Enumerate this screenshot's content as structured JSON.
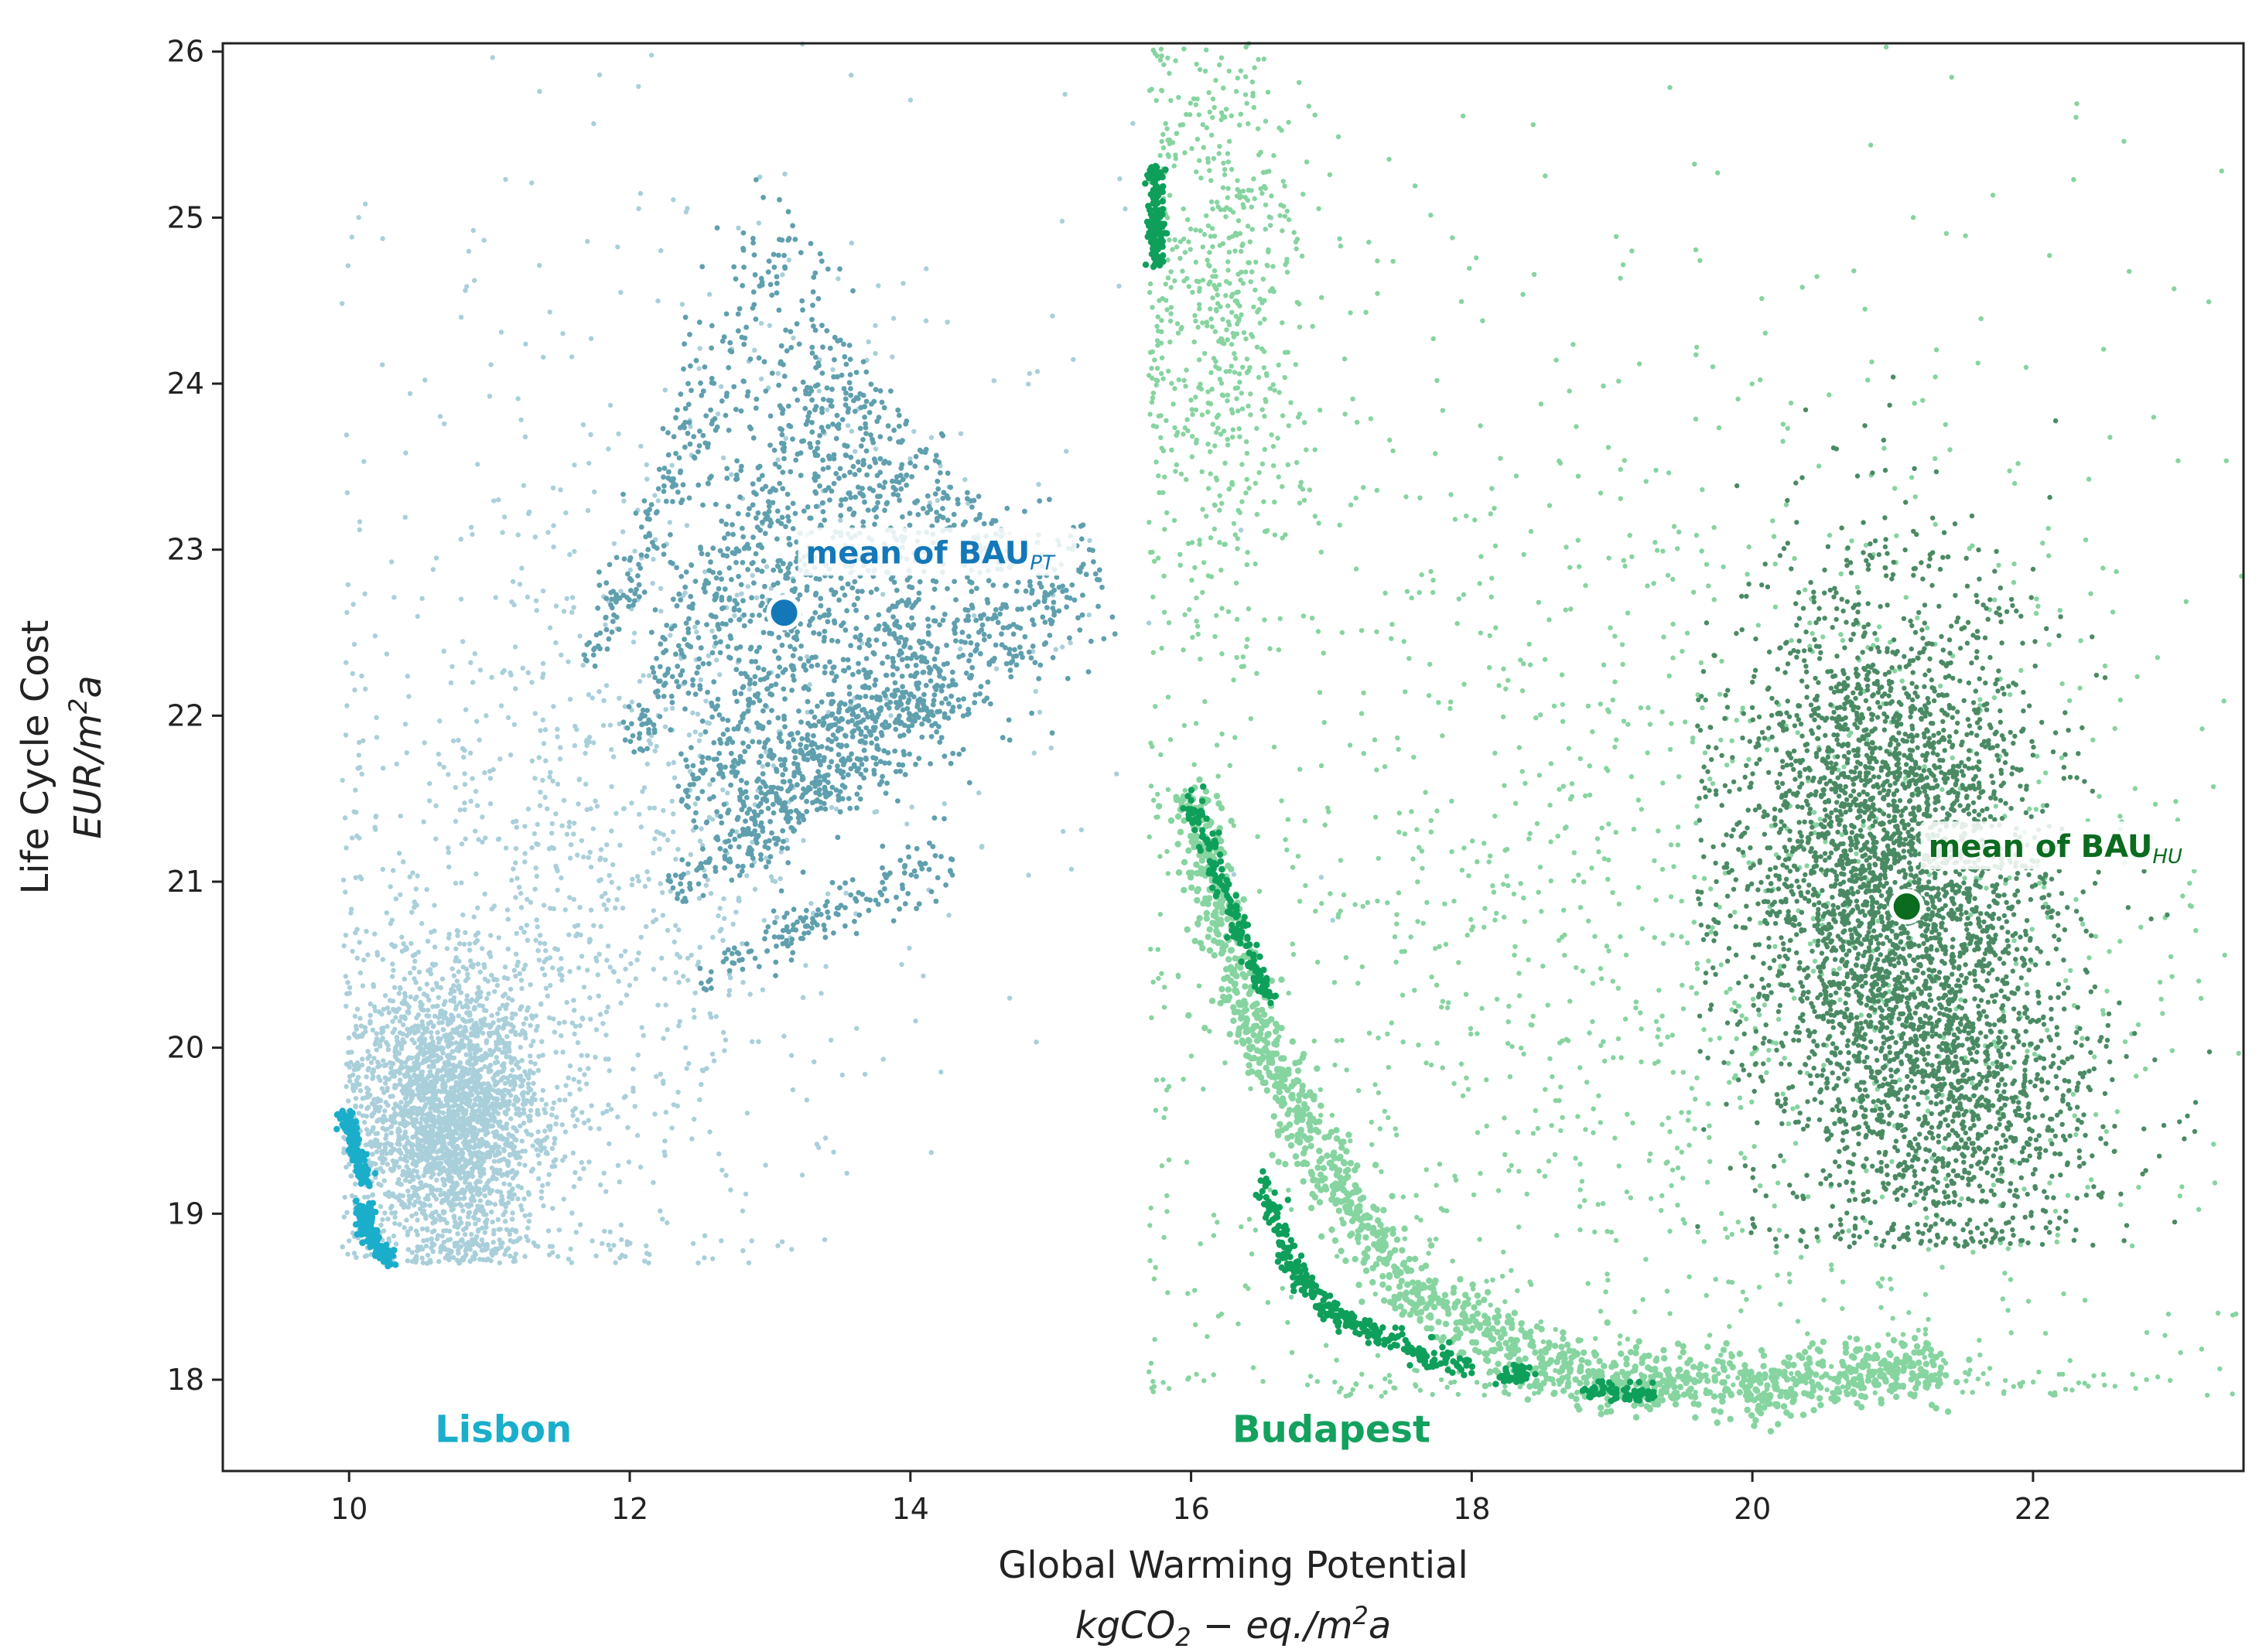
{
  "chart_data": {
    "type": "scatter",
    "title": "",
    "xlabel": "Global Warming Potential",
    "xlabel_unit": {
      "base": "kgCO",
      "sub": "2",
      "mid": " − eq./m",
      "sup": "2",
      "end": "a"
    },
    "ylabel": "Life Cycle Cost",
    "ylabel_unit": {
      "base": "EUR/m",
      "sup": "2",
      "end": "a"
    },
    "xlim": [
      9.1,
      23.5
    ],
    "ylim": [
      17.45,
      26.05
    ],
    "x_ticks": [
      10,
      12,
      14,
      16,
      18,
      20,
      22
    ],
    "y_ticks": [
      18,
      19,
      20,
      21,
      22,
      23,
      24,
      25,
      26
    ],
    "grid": false,
    "colors": {
      "lisbon_light": "#a9cfda",
      "lisbon_mid": "#5f9fae",
      "lisbon_bright": "#1aaecb",
      "lisbon_label": "#1aaecb",
      "lisbon_mean": "#1478b8",
      "budapest_light": "#86d4a0",
      "budapest_mid": "#4a8a63",
      "budapest_bright": "#0e9f5a",
      "budapest_label": "#13a15e",
      "budapest_mean": "#0b6b1f"
    },
    "city_labels": [
      {
        "text": "Lisbon",
        "x": 11.1,
        "y": 17.7,
        "color": "#1aaecb"
      },
      {
        "text": "Budapest",
        "x": 17.0,
        "y": 17.7,
        "color": "#13a15e"
      }
    ],
    "series": [
      {
        "city": "Lisbon",
        "color": "#a9cfda",
        "clusters": [
          {
            "x_mean": 10.7,
            "x_sd": 0.35,
            "y_mean": 19.6,
            "y_sd": 0.45,
            "count": 2600,
            "xmin": 9.95,
            "ymin": 18.7
          },
          {
            "x_mean": 11.6,
            "x_sd": 0.9,
            "y_mean": 20.8,
            "y_sd": 1.2,
            "count": 900,
            "xmin": 9.95,
            "ymin": 18.7
          },
          {
            "x_mean": 12.6,
            "x_sd": 1.6,
            "y_mean": 23.0,
            "y_sd": 1.6,
            "count": 320,
            "xmin": 9.95,
            "ymin": 18.7
          }
        ]
      },
      {
        "city": "Lisbon",
        "color": "#5f9fae",
        "streaks": [
          {
            "x0": 11.7,
            "y0": 22.3,
            "x1": 13.2,
            "y1": 25.0,
            "count": 260,
            "spread": 0.25
          },
          {
            "x0": 12.0,
            "y0": 21.8,
            "x1": 13.6,
            "y1": 24.2,
            "count": 420,
            "spread": 0.35
          },
          {
            "x0": 12.4,
            "y0": 21.4,
            "x1": 14.0,
            "y1": 23.8,
            "count": 520,
            "spread": 0.4
          },
          {
            "x0": 12.8,
            "y0": 21.2,
            "x1": 14.6,
            "y1": 23.2,
            "count": 560,
            "spread": 0.45
          },
          {
            "x0": 13.3,
            "y0": 21.5,
            "x1": 15.3,
            "y1": 23.0,
            "count": 300,
            "spread": 0.2
          },
          {
            "x0": 12.3,
            "y0": 20.9,
            "x1": 14.2,
            "y1": 22.4,
            "count": 300,
            "spread": 0.25
          },
          {
            "x0": 12.5,
            "y0": 20.4,
            "x1": 14.3,
            "y1": 21.2,
            "count": 160,
            "spread": 0.12
          }
        ]
      },
      {
        "city": "Lisbon",
        "color": "#1aaecb",
        "curves": [
          {
            "points": [
              [
                9.98,
                19.6
              ],
              [
                10.05,
                19.4
              ],
              [
                10.12,
                19.2
              ]
            ],
            "count": 140,
            "spread": 0.03
          },
          {
            "points": [
              [
                10.1,
                19.05
              ],
              [
                10.15,
                18.85
              ],
              [
                10.3,
                18.72
              ]
            ],
            "count": 140,
            "spread": 0.03
          }
        ]
      },
      {
        "city": "Budapest",
        "color": "#86d4a0",
        "clusters": [
          {
            "x_mean": 19.6,
            "x_sd": 2.1,
            "y_mean": 20.5,
            "y_sd": 2.1,
            "count": 1700,
            "xmin": 15.7,
            "ymin": 17.9
          },
          {
            "x_mean": 16.2,
            "x_sd": 0.35,
            "y_mean": 24.5,
            "y_sd": 1.1,
            "count": 700,
            "xmin": 15.7,
            "ymin": 17.9
          }
        ],
        "curves": [
          {
            "points": [
              [
                16.0,
                21.5
              ],
              [
                16.4,
                20.2
              ],
              [
                17.0,
                19.2
              ],
              [
                17.6,
                18.5
              ],
              [
                18.6,
                18.05
              ],
              [
                20.0,
                17.95
              ],
              [
                21.3,
                18.1
              ]
            ],
            "count": 1500,
            "spread": 0.1
          }
        ]
      },
      {
        "city": "Budapest",
        "color": "#4a8a63",
        "clusters": [
          {
            "x_mean": 21.0,
            "x_sd": 0.55,
            "y_mean": 21.0,
            "y_sd": 0.9,
            "count": 3400,
            "xmin": 19.6,
            "ymin": 18.8
          },
          {
            "x_mean": 21.5,
            "x_sd": 0.55,
            "y_mean": 19.6,
            "y_sd": 0.45,
            "count": 800,
            "xmin": 19.6,
            "ymin": 18.8
          }
        ]
      },
      {
        "city": "Budapest",
        "color": "#0e9f5a",
        "curves": [
          {
            "points": [
              [
                15.75,
                25.3
              ],
              [
                15.75,
                24.7
              ]
            ],
            "count": 140,
            "spread": 0.03
          },
          {
            "points": [
              [
                16.0,
                21.5
              ],
              [
                16.3,
                20.8
              ],
              [
                16.55,
                20.3
              ]
            ],
            "count": 160,
            "spread": 0.04
          },
          {
            "points": [
              [
                16.5,
                19.2
              ],
              [
                16.7,
                18.7
              ],
              [
                17.0,
                18.4
              ],
              [
                17.5,
                18.2
              ],
              [
                18.0,
                18.08
              ]
            ],
            "count": 280,
            "spread": 0.04
          },
          {
            "points": [
              [
                18.2,
                18.0
              ],
              [
                18.4,
                18.05
              ]
            ],
            "count": 40,
            "spread": 0.03
          },
          {
            "points": [
              [
                18.8,
                17.92
              ],
              [
                19.3,
                17.92
              ]
            ],
            "count": 60,
            "spread": 0.03
          }
        ]
      }
    ],
    "means": [
      {
        "city": "Lisbon",
        "text": "mean of BAU",
        "sub": "PT",
        "x": 13.1,
        "y": 22.62,
        "color": "#1478b8"
      },
      {
        "city": "Budapest",
        "text": "mean of BAU",
        "sub": "HU",
        "x": 21.1,
        "y": 20.85,
        "color": "#0b6b1f"
      }
    ]
  }
}
